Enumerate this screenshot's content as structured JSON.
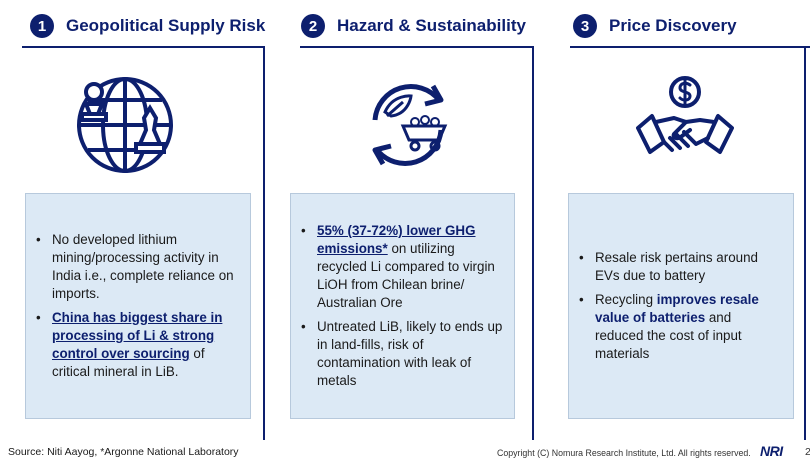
{
  "columns": [
    {
      "number": "1",
      "title": "Geopolitical Supply Risk",
      "icon": "globe-chess-icon",
      "bullets": [
        {
          "segments": [
            {
              "text": "No developed lithium mining/processing activity in India i.e., complete reliance on imports.",
              "style": "normal"
            }
          ]
        },
        {
          "segments": [
            {
              "text": "China has biggest share in processing of Li & strong control over sourcing",
              "style": "bold-underline"
            },
            {
              "text": " of critical mineral  in LiB.",
              "style": "normal"
            }
          ]
        }
      ]
    },
    {
      "number": "2",
      "title": "Hazard & Sustainability",
      "icon": "recycle-leaf-cart-icon",
      "bullets": [
        {
          "segments": [
            {
              "text": "55% (37-72%) lower GHG emissions*",
              "style": "bold-underline"
            },
            {
              "text": " on utilizing recycled Li compared to virgin LiOH from Chilean brine/ Australian Ore",
              "style": "normal"
            }
          ]
        },
        {
          "segments": [
            {
              "text": "Untreated LiB, likely to ends up in land-fills, risk of contamination with leak of metals",
              "style": "normal"
            }
          ]
        }
      ]
    },
    {
      "number": "3",
      "title": "Price Discovery",
      "icon": "handshake-dollar-icon",
      "bullets": [
        {
          "segments": [
            {
              "text": "Resale risk pertains around EVs due to battery",
              "style": "normal"
            }
          ]
        },
        {
          "segments": [
            {
              "text": "Recycling ",
              "style": "normal"
            },
            {
              "text": "improves resale value of batteries",
              "style": "bold"
            },
            {
              "text": " and reduced the cost of input materials",
              "style": "normal"
            }
          ]
        }
      ]
    }
  ],
  "footer": {
    "source": "Source: Niti Aayog,  *Argonne National Laboratory",
    "copyright": "Copyright (C)  Nomura Research Institute, Ltd. All rights reserved.",
    "logo": "NRI",
    "page_number": "2"
  },
  "colors": {
    "accent": "#0d1f6e",
    "box_fill": "#dce9f5",
    "box_border": "#b7c9dc"
  }
}
